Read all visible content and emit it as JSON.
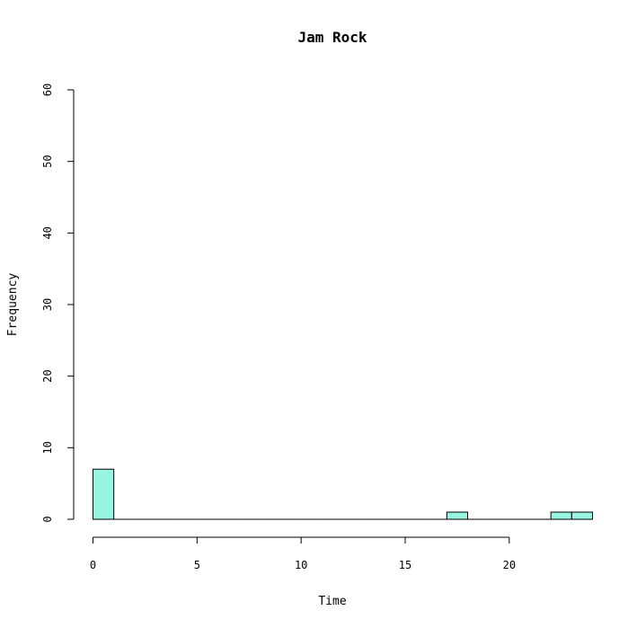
{
  "chart_data": {
    "type": "bar",
    "title": "Jam Rock",
    "xlabel": "Time",
    "ylabel": "Frequency",
    "xlim": [
      0,
      24
    ],
    "ylim": [
      0,
      60
    ],
    "x_ticks": [
      "0",
      "5",
      "10",
      "15",
      "20"
    ],
    "y_ticks": [
      "0",
      "10",
      "20",
      "30",
      "40",
      "50",
      "60"
    ],
    "bin_width": 1,
    "bins": [
      {
        "start": 0,
        "end": 1,
        "count": 7
      },
      {
        "start": 1,
        "end": 2,
        "count": 0
      },
      {
        "start": 2,
        "end": 3,
        "count": 0
      },
      {
        "start": 3,
        "end": 4,
        "count": 0
      },
      {
        "start": 4,
        "end": 5,
        "count": 0
      },
      {
        "start": 5,
        "end": 6,
        "count": 0
      },
      {
        "start": 6,
        "end": 7,
        "count": 0
      },
      {
        "start": 7,
        "end": 8,
        "count": 0
      },
      {
        "start": 8,
        "end": 9,
        "count": 0
      },
      {
        "start": 9,
        "end": 10,
        "count": 0
      },
      {
        "start": 10,
        "end": 11,
        "count": 0
      },
      {
        "start": 11,
        "end": 12,
        "count": 0
      },
      {
        "start": 12,
        "end": 13,
        "count": 0
      },
      {
        "start": 13,
        "end": 14,
        "count": 0
      },
      {
        "start": 14,
        "end": 15,
        "count": 0
      },
      {
        "start": 15,
        "end": 16,
        "count": 0
      },
      {
        "start": 16,
        "end": 17,
        "count": 0
      },
      {
        "start": 17,
        "end": 18,
        "count": 1
      },
      {
        "start": 18,
        "end": 19,
        "count": 0
      },
      {
        "start": 19,
        "end": 20,
        "count": 0
      },
      {
        "start": 20,
        "end": 21,
        "count": 0
      },
      {
        "start": 21,
        "end": 22,
        "count": 0
      },
      {
        "start": 22,
        "end": 23,
        "count": 1
      },
      {
        "start": 23,
        "end": 24,
        "count": 1
      }
    ],
    "bar_color": "#98f5e1",
    "grid": false,
    "legend": "none"
  }
}
